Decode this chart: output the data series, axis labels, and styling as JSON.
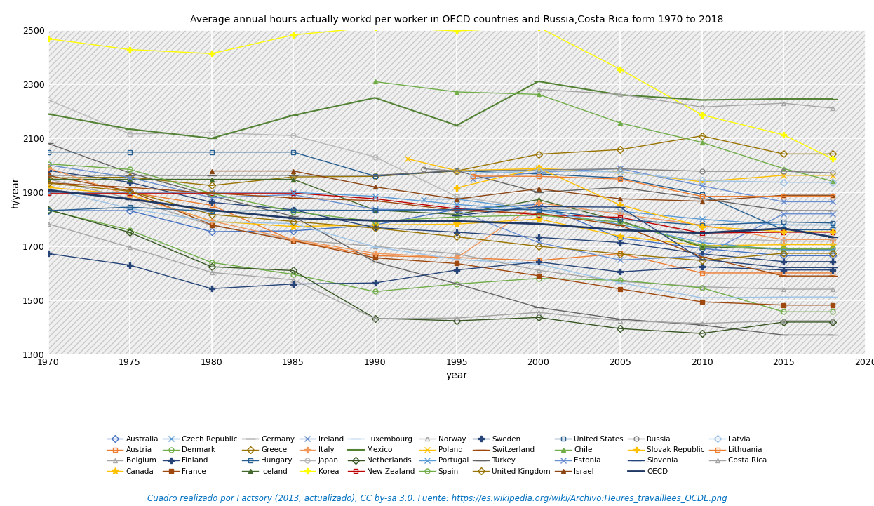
{
  "title": "Average annual hours actually workd per worker in OECD countries and Russia,Costa Rica form 1970 to 2018",
  "xlabel": "year",
  "ylabel": "h/year",
  "ylim": [
    1300,
    2500
  ],
  "xlim": [
    1970,
    2020
  ],
  "yticks": [
    1300,
    1500,
    1700,
    1900,
    2100,
    2300,
    2500
  ],
  "xticks": [
    1970,
    1975,
    1980,
    1985,
    1990,
    1995,
    2000,
    2005,
    2010,
    2015,
    2020
  ],
  "footer": "Cuadro realizado por Factsory (2013, actualizado), CC by-sa 3.0. Fuente: https://es.wikipedia.org/wiki/Archivo:Heures_travaillees_OCDE.png",
  "series": [
    {
      "name": "Australia",
      "color": "#4472C4",
      "marker": "D",
      "ms": 5,
      "mfc": "none",
      "lw": 1.0,
      "years": [
        1970,
        1975,
        1980,
        1985,
        1990,
        1995,
        2000,
        2005,
        2010,
        2015,
        2018
      ],
      "values": [
        1832,
        1832,
        1754,
        1757,
        1779,
        1837,
        1855,
        1730,
        1692,
        1665,
        1665
      ]
    },
    {
      "name": "Austria",
      "color": "#ED7D31",
      "marker": "s",
      "ms": 5,
      "mfc": "none",
      "lw": 1.0,
      "years": [
        1970,
        1975,
        1980,
        1985,
        1990,
        1995,
        2000,
        2005,
        2010,
        2015,
        2018
      ],
      "values": [
        1900,
        1900,
        1852,
        1721,
        1665,
        1658,
        1647,
        1673,
        1601,
        1601,
        1601
      ]
    },
    {
      "name": "Belgium",
      "color": "#A5A5A5",
      "marker": "^",
      "ms": 5,
      "mfc": "none",
      "lw": 1.0,
      "years": [
        1970,
        1975,
        1980,
        1985,
        1990,
        1995,
        2000,
        2005,
        2010,
        2015,
        2018
      ],
      "values": [
        1949,
        1877,
        1777,
        1724,
        1700,
        1672,
        1611,
        1570,
        1550,
        1541,
        1541
      ]
    },
    {
      "name": "Canada",
      "color": "#FFC000",
      "marker": "*",
      "ms": 7,
      "mfc": "#FFC000",
      "lw": 1.0,
      "years": [
        1970,
        1975,
        1980,
        1985,
        1990,
        1995,
        2000,
        2005,
        2010,
        2015,
        2018
      ],
      "values": [
        1918,
        1892,
        1793,
        1773,
        1779,
        1782,
        1801,
        1737,
        1702,
        1706,
        1706
      ]
    },
    {
      "name": "Czech Republic",
      "color": "#5B9BD5",
      "marker": "x",
      "ms": 6,
      "mfc": "#5B9BD5",
      "lw": 1.0,
      "years": [
        1993,
        1995,
        2000,
        2005,
        2010,
        2015,
        2018
      ],
      "values": [
        1875,
        1875,
        1834,
        1830,
        1800,
        1779,
        1779
      ]
    },
    {
      "name": "Denmark",
      "color": "#70AD47",
      "marker": "o",
      "ms": 5,
      "mfc": "none",
      "lw": 1.0,
      "years": [
        1970,
        1975,
        1980,
        1985,
        1990,
        1995,
        2000,
        2005,
        2010,
        2015,
        2018
      ],
      "values": [
        1834,
        1760,
        1640,
        1596,
        1532,
        1560,
        1581,
        1574,
        1546,
        1457,
        1457
      ]
    },
    {
      "name": "Finland",
      "color": "#264478",
      "marker": "P",
      "ms": 6,
      "mfc": "#264478",
      "lw": 1.0,
      "years": [
        1970,
        1975,
        1980,
        1985,
        1990,
        1995,
        2000,
        2005,
        2010,
        2015,
        2018
      ],
      "values": [
        1981,
        1937,
        1863,
        1835,
        1769,
        1752,
        1733,
        1714,
        1672,
        1643,
        1643
      ]
    },
    {
      "name": "France",
      "color": "#9E480E",
      "marker": "s",
      "ms": 5,
      "mfc": "#9E480E",
      "lw": 1.0,
      "years": [
        1970,
        1975,
        1980,
        1985,
        1990,
        1995,
        2000,
        2005,
        2010,
        2015,
        2018
      ],
      "values": [
        1962,
        1905,
        1779,
        1720,
        1657,
        1636,
        1591,
        1542,
        1494,
        1482,
        1482
      ]
    },
    {
      "name": "Germany",
      "color": "#636363",
      "marker": "_",
      "ms": 10,
      "mfc": "#636363",
      "lw": 1.0,
      "years": [
        1970,
        1975,
        1980,
        1985,
        1990,
        1995,
        2000,
        2005,
        2010,
        2015,
        2018
      ],
      "values": [
        2081,
        1972,
        1887,
        1811,
        1642,
        1561,
        1473,
        1430,
        1408,
        1371,
        1371
      ]
    },
    {
      "name": "Greece",
      "color": "#997300",
      "marker": "D",
      "ms": 5,
      "mfc": "none",
      "lw": 1.0,
      "years": [
        1970,
        1975,
        1980,
        1985,
        1990,
        1995,
        2000,
        2005,
        2010,
        2015,
        2018
      ],
      "values": [
        1953,
        1956,
        1925,
        1957,
        1959,
        1979,
        2041,
        2058,
        2109,
        2042,
        2042
      ]
    },
    {
      "name": "Hungary",
      "color": "#255E91",
      "marker": "s",
      "ms": 5,
      "mfc": "none",
      "lw": 1.0,
      "years": [
        1970,
        1975,
        1980,
        1985,
        1990,
        1995,
        2000,
        2005,
        2010,
        2015,
        2018
      ],
      "values": [
        2049,
        2049,
        2049,
        2049,
        1960,
        1980,
        1968,
        1953,
        1893,
        1761,
        1761
      ]
    },
    {
      "name": "Iceland",
      "color": "#43682B",
      "marker": "^",
      "ms": 5,
      "mfc": "#43682B",
      "lw": 1.0,
      "years": [
        1970,
        1975,
        1980,
        1985,
        1990,
        1995,
        2000,
        2005,
        2010,
        2015,
        2018
      ],
      "values": [
        1948,
        1948,
        1948,
        1948,
        1834,
        1818,
        1873,
        1794,
        1698,
        1689,
        1689
      ]
    },
    {
      "name": "Ireland",
      "color": "#698ED0",
      "marker": "x",
      "ms": 6,
      "mfc": "#698ED0",
      "lw": 1.0,
      "years": [
        1970,
        1975,
        1980,
        1985,
        1990,
        1995,
        2000,
        2005,
        2010,
        2015,
        2018
      ],
      "values": [
        2001,
        1955,
        1880,
        1891,
        1837,
        1833,
        1714,
        1649,
        1664,
        1820,
        1820
      ]
    },
    {
      "name": "Italy",
      "color": "#F1975A",
      "marker": "P",
      "ms": 6,
      "mfc": "#F1975A",
      "lw": 1.0,
      "years": [
        1970,
        1975,
        1980,
        1985,
        1990,
        1995,
        2000,
        2005,
        2010,
        2015,
        2018
      ],
      "values": [
        1990,
        1888,
        1794,
        1725,
        1674,
        1657,
        1861,
        1819,
        1778,
        1725,
        1725
      ]
    },
    {
      "name": "Japan",
      "color": "#B7B7B7",
      "marker": "o",
      "ms": 5,
      "mfc": "none",
      "lw": 1.0,
      "years": [
        1970,
        1975,
        1980,
        1985,
        1990,
        1995,
        2000,
        2005,
        2010,
        2015,
        2018
      ],
      "values": [
        2243,
        2116,
        2121,
        2110,
        2031,
        1884,
        1840,
        1828,
        1733,
        1719,
        1719
      ]
    },
    {
      "name": "Korea",
      "color": "#FFFF00",
      "marker": "P",
      "ms": 6,
      "mfc": "#FFFF00",
      "lw": 1.0,
      "years": [
        1970,
        1975,
        1980,
        1985,
        1990,
        1995,
        2000,
        2005,
        2010,
        2015,
        2018
      ],
      "values": [
        2469,
        2429,
        2414,
        2483,
        2512,
        2498,
        2512,
        2356,
        2187,
        2113,
        2024
      ]
    },
    {
      "name": "Luxembourg",
      "color": "#9DC3E6",
      "marker": "_",
      "ms": 10,
      "mfc": "#9DC3E6",
      "lw": 1.0,
      "years": [
        1970,
        1975,
        1980,
        1985,
        1990,
        1995,
        2000,
        2005,
        2010,
        2015,
        2018
      ],
      "values": [
        1913,
        1840,
        1791,
        1784,
        1698,
        1651,
        1634,
        1565,
        1509,
        1512,
        1512
      ]
    },
    {
      "name": "Mexico",
      "color": "#548235",
      "marker": "_",
      "ms": 10,
      "mfc": "#548235",
      "lw": 1.5,
      "years": [
        1970,
        1975,
        1980,
        1985,
        1990,
        1995,
        2000,
        2005,
        2010,
        2015,
        2018
      ],
      "values": [
        2190,
        2134,
        2100,
        2185,
        2250,
        2148,
        2311,
        2261,
        2242,
        2246,
        2246
      ]
    },
    {
      "name": "Netherlands",
      "color": "#375623",
      "marker": "D",
      "ms": 5,
      "mfc": "none",
      "lw": 1.0,
      "years": [
        1970,
        1975,
        1980,
        1985,
        1990,
        1995,
        2000,
        2005,
        2010,
        2015,
        2018
      ],
      "values": [
        1836,
        1751,
        1624,
        1610,
        1433,
        1424,
        1436,
        1395,
        1377,
        1419,
        1419
      ]
    },
    {
      "name": "New Zealand",
      "color": "#C00000",
      "marker": "s",
      "ms": 5,
      "mfc": "none",
      "lw": 1.0,
      "years": [
        1970,
        1975,
        1980,
        1985,
        1990,
        1995,
        2000,
        2005,
        2010,
        2015,
        2018
      ],
      "values": [
        1897,
        1897,
        1897,
        1897,
        1876,
        1839,
        1817,
        1807,
        1749,
        1752,
        1752
      ]
    },
    {
      "name": "Norway",
      "color": "#A5A5A5",
      "marker": "^",
      "ms": 5,
      "mfc": "none",
      "lw": 1.0,
      "years": [
        1970,
        1975,
        1980,
        1985,
        1990,
        1995,
        2000,
        2005,
        2010,
        2015,
        2018
      ],
      "values": [
        1783,
        1696,
        1603,
        1576,
        1432,
        1434,
        1455,
        1424,
        1414,
        1424,
        1424
      ]
    },
    {
      "name": "Poland",
      "color": "#FFC000",
      "marker": "x",
      "ms": 6,
      "mfc": "#FFC000",
      "lw": 1.0,
      "years": [
        1992,
        1995,
        2000,
        2005,
        2010,
        2015,
        2018
      ],
      "values": [
        2024,
        1980,
        1988,
        1976,
        1939,
        1963,
        1963
      ]
    },
    {
      "name": "Portugal",
      "color": "#5B9BD5",
      "marker": "x",
      "ms": 6,
      "mfc": "#5B9BD5",
      "lw": 1.0,
      "years": [
        1970,
        1975,
        1980,
        1985,
        1990,
        1995,
        2000,
        2005,
        2010,
        2015,
        2018
      ],
      "values": [
        1900,
        1900,
        1900,
        1900,
        1885,
        1855,
        1833,
        1781,
        1714,
        1686,
        1686
      ]
    },
    {
      "name": "Spain",
      "color": "#70AD47",
      "marker": "o",
      "ms": 5,
      "mfc": "none",
      "lw": 1.0,
      "years": [
        1970,
        1975,
        1980,
        1985,
        1990,
        1995,
        2000,
        2005,
        2010,
        2015,
        2018
      ],
      "values": [
        2005,
        1985,
        1896,
        1828,
        1792,
        1809,
        1815,
        1790,
        1703,
        1691,
        1691
      ]
    },
    {
      "name": "Sweden",
      "color": "#264478",
      "marker": "P",
      "ms": 6,
      "mfc": "#264478",
      "lw": 1.0,
      "years": [
        1970,
        1975,
        1980,
        1985,
        1990,
        1995,
        2000,
        2005,
        2010,
        2015,
        2018
      ],
      "values": [
        1673,
        1630,
        1543,
        1560,
        1564,
        1612,
        1642,
        1605,
        1624,
        1612,
        1612
      ]
    },
    {
      "name": "Switzerland",
      "color": "#9E480E",
      "marker": "_",
      "ms": 10,
      "mfc": "#9E480E",
      "lw": 1.0,
      "years": [
        1970,
        1975,
        1980,
        1985,
        1990,
        1995,
        2000,
        2005,
        2010,
        2015,
        2018
      ],
      "values": [
        1935,
        1918,
        1897,
        1879,
        1869,
        1833,
        1822,
        1778,
        1661,
        1590,
        1590
      ]
    },
    {
      "name": "Turkey",
      "color": "#636363",
      "marker": "_",
      "ms": 10,
      "mfc": "#636363",
      "lw": 1.0,
      "years": [
        1970,
        1975,
        1980,
        1985,
        1990,
        1995,
        2000,
        2005,
        2010,
        2015,
        2018
      ],
      "values": [
        1963,
        1963,
        1963,
        1963,
        1963,
        1980,
        1900,
        1918,
        1877,
        1832,
        1832
      ]
    },
    {
      "name": "United Kingdom",
      "color": "#997300",
      "marker": "D",
      "ms": 5,
      "mfc": "none",
      "lw": 1.0,
      "years": [
        1970,
        1975,
        1980,
        1985,
        1990,
        1995,
        2000,
        2005,
        2010,
        2015,
        2018
      ],
      "values": [
        1934,
        1904,
        1818,
        1792,
        1767,
        1735,
        1700,
        1672,
        1647,
        1674,
        1674
      ]
    },
    {
      "name": "United States",
      "color": "#255E91",
      "marker": "s",
      "ms": 5,
      "mfc": "none",
      "lw": 1.0,
      "years": [
        1970,
        1975,
        1980,
        1985,
        1990,
        1995,
        2000,
        2005,
        2010,
        2015,
        2018
      ],
      "values": [
        1832,
        1845,
        1829,
        1834,
        1833,
        1836,
        1836,
        1799,
        1778,
        1790,
        1786
      ]
    },
    {
      "name": "Chile",
      "color": "#70AD47",
      "marker": "^",
      "ms": 5,
      "mfc": "#70AD47",
      "lw": 1.0,
      "years": [
        1990,
        1995,
        2000,
        2005,
        2010,
        2015,
        2018
      ],
      "values": [
        2310,
        2272,
        2263,
        2157,
        2085,
        1988,
        1941
      ]
    },
    {
      "name": "Estonia",
      "color": "#698ED0",
      "marker": "x",
      "ms": 6,
      "mfc": "#698ED0",
      "lw": 1.0,
      "years": [
        1996,
        2000,
        2005,
        2010,
        2015,
        2018
      ],
      "values": [
        1950,
        1974,
        1988,
        1924,
        1865,
        1865
      ]
    },
    {
      "name": "Israel",
      "color": "#8B4513",
      "marker": "^",
      "ms": 5,
      "mfc": "#8B4513",
      "lw": 1.0,
      "years": [
        1980,
        1985,
        1990,
        1995,
        2000,
        2005,
        2010,
        2015,
        2018
      ],
      "values": [
        1979,
        1979,
        1920,
        1875,
        1913,
        1876,
        1867,
        1889,
        1889
      ]
    },
    {
      "name": "Russia",
      "color": "#808080",
      "marker": "o",
      "ms": 5,
      "mfc": "none",
      "lw": 1.0,
      "years": [
        1993,
        1995,
        2000,
        2005,
        2010,
        2015,
        2018
      ],
      "values": [
        1987,
        1979,
        1983,
        1987,
        1978,
        1978,
        1972
      ]
    },
    {
      "name": "Slovak Republic",
      "color": "#FFC000",
      "marker": "P",
      "ms": 6,
      "mfc": "#FFC000",
      "lw": 1.0,
      "years": [
        1995,
        2000,
        2005,
        2010,
        2015,
        2018
      ],
      "values": [
        1916,
        1990,
        1853,
        1773,
        1754,
        1754
      ]
    },
    {
      "name": "Slovenia",
      "color": "#264478",
      "marker": "_",
      "ms": 10,
      "mfc": "#264478",
      "lw": 1.0,
      "years": [
        1995,
        2000,
        2005,
        2010,
        2015,
        2018
      ],
      "values": [
        1814,
        1847,
        1845,
        1651,
        1621,
        1621
      ]
    },
    {
      "name": "OECD",
      "color": "#1F3864",
      "marker": "_",
      "ms": 10,
      "mfc": "#1F3864",
      "lw": 2.0,
      "years": [
        1970,
        1975,
        1980,
        1985,
        1990,
        1995,
        2000,
        2005,
        2010,
        2015,
        2018
      ],
      "values": [
        1908,
        1875,
        1834,
        1804,
        1795,
        1793,
        1783,
        1760,
        1749,
        1766,
        1734
      ]
    },
    {
      "name": "Latvia",
      "color": "#9DC3E6",
      "marker": "D",
      "ms": 5,
      "mfc": "none",
      "lw": 1.0,
      "years": [
        1996,
        2000,
        2005,
        2010,
        2015,
        2018
      ],
      "values": [
        1970,
        1980,
        1975,
        1943,
        1937,
        1937
      ]
    },
    {
      "name": "Lithuania",
      "color": "#ED7D31",
      "marker": "s",
      "ms": 5,
      "mfc": "none",
      "lw": 1.0,
      "years": [
        1996,
        2000,
        2005,
        2010,
        2015,
        2018
      ],
      "values": [
        1960,
        1959,
        1949,
        1885,
        1885,
        1885
      ]
    },
    {
      "name": "Costa Rica",
      "color": "#A5A5A5",
      "marker": "^",
      "ms": 5,
      "mfc": "none",
      "lw": 1.0,
      "years": [
        2000,
        2005,
        2010,
        2015,
        2018
      ],
      "values": [
        2281,
        2263,
        2216,
        2230,
        2212
      ]
    }
  ],
  "legend_order": [
    "Australia",
    "Austria",
    "Belgium",
    "Canada",
    "Czech Republic",
    "Denmark",
    "Finland",
    "France",
    "Germany",
    "Greece",
    "Hungary",
    "Iceland",
    "Ireland",
    "Italy",
    "Japan",
    "Korea",
    "Luxembourg",
    "Mexico",
    "Netherlands",
    "New Zealand",
    "Norway",
    "Poland",
    "Portugal",
    "Spain",
    "Sweden",
    "Switzerland",
    "Turkey",
    "United Kingdom",
    "United States",
    "Chile",
    "Estonia",
    "Israel",
    "Russia",
    "Slovak Republic",
    "Slovenia",
    "OECD",
    "Latvia",
    "Lithuania",
    "Costa Rica"
  ]
}
